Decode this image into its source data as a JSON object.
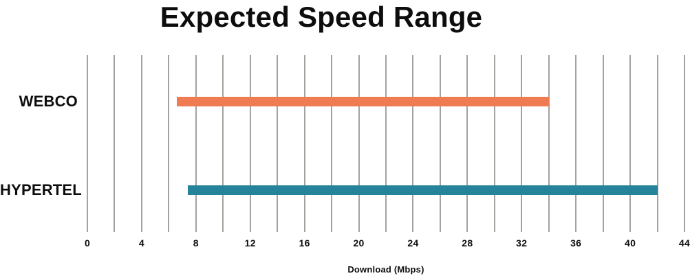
{
  "chart_data": {
    "type": "bar",
    "subtype": "horizontal-range-bars",
    "title": "Expected Speed Range",
    "xlabel": "Download (Mbps)",
    "categories": [
      "WEBCO",
      "HYPERTEL"
    ],
    "series": [
      {
        "name": "WEBCO",
        "range": [
          6.6,
          34
        ],
        "color": "#EF7B52"
      },
      {
        "name": "HYPERTEL",
        "range": [
          7.4,
          42
        ],
        "color": "#26849A"
      }
    ],
    "xlim": [
      0,
      44
    ],
    "xticks": [
      0,
      4,
      8,
      12,
      16,
      20,
      24,
      28,
      32,
      36,
      40,
      44
    ],
    "gridline_step": 2,
    "grid": true,
    "legend": false,
    "colors": {
      "gridline": "#A5A19C",
      "text": "#0D0D0D",
      "background": "#FFFFFF"
    }
  }
}
